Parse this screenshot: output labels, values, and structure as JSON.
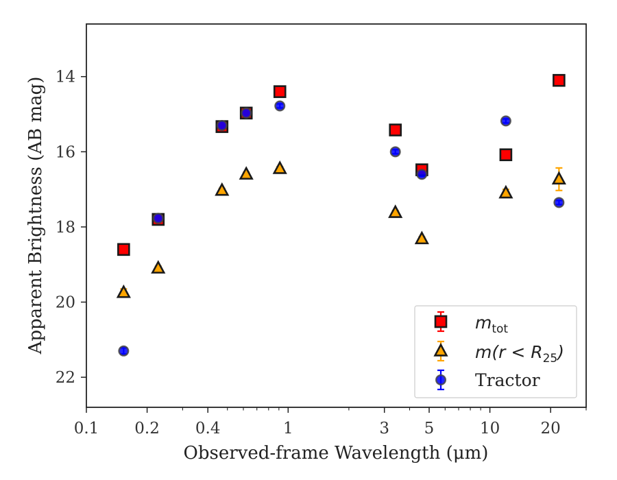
{
  "chart_data": {
    "type": "scatter",
    "xlabel": "Observed-frame Wavelength (μm)",
    "ylabel": "Apparent Brightness (AB mag)",
    "xscale": "log",
    "xlim": [
      0.1,
      30
    ],
    "ylim": [
      22.8,
      12.6
    ],
    "y_inverted": true,
    "x_ticks": [
      {
        "value": 0.1,
        "label": "0.1"
      },
      {
        "value": 0.2,
        "label": "0.2"
      },
      {
        "value": 0.4,
        "label": "0.4"
      },
      {
        "value": 1,
        "label": "1"
      },
      {
        "value": 3,
        "label": "3"
      },
      {
        "value": 5,
        "label": "5"
      },
      {
        "value": 10,
        "label": "10"
      },
      {
        "value": 20,
        "label": "20"
      }
    ],
    "x_minor_ticks": [
      0.3,
      0.5,
      0.6,
      0.7,
      0.8,
      0.9,
      2,
      4,
      6,
      7,
      8,
      9,
      30
    ],
    "y_ticks": [
      {
        "value": 14,
        "label": "14"
      },
      {
        "value": 16,
        "label": "16"
      },
      {
        "value": 18,
        "label": "18"
      },
      {
        "value": 20,
        "label": "20"
      },
      {
        "value": 22,
        "label": "22"
      }
    ],
    "grid": false,
    "legend_position": "bottom-right",
    "series": [
      {
        "name": "m_tot",
        "marker": "square",
        "color": "#ff0000",
        "edgecolor": "#1a1a1a",
        "errorcolor": "#ff0000",
        "points": [
          {
            "x": 0.153,
            "y": 18.6,
            "err": 0.05
          },
          {
            "x": 0.227,
            "y": 17.8,
            "err": 0.05
          },
          {
            "x": 0.47,
            "y": 15.33,
            "err": 0.03
          },
          {
            "x": 0.62,
            "y": 14.97,
            "err": 0.03
          },
          {
            "x": 0.91,
            "y": 14.4,
            "err": 0.03
          },
          {
            "x": 3.4,
            "y": 15.42,
            "err": 0.03
          },
          {
            "x": 4.6,
            "y": 16.48,
            "err": 0.05
          },
          {
            "x": 12.0,
            "y": 16.08,
            "err": 0.05
          },
          {
            "x": 22.0,
            "y": 14.1,
            "err": 0.05
          }
        ]
      },
      {
        "name": "m(r < R25)",
        "marker": "triangle",
        "color": "#ffa500",
        "edgecolor": "#1a1a1a",
        "errorcolor": "#ffa500",
        "points": [
          {
            "x": 0.153,
            "y": 19.75,
            "err": 0.1
          },
          {
            "x": 0.227,
            "y": 19.1,
            "err": 0.05
          },
          {
            "x": 0.47,
            "y": 17.03,
            "err": 0.03
          },
          {
            "x": 0.62,
            "y": 16.6,
            "err": 0.03
          },
          {
            "x": 0.91,
            "y": 16.45,
            "err": 0.03
          },
          {
            "x": 3.4,
            "y": 17.62,
            "err": 0.03
          },
          {
            "x": 4.6,
            "y": 18.32,
            "err": 0.05
          },
          {
            "x": 12.0,
            "y": 17.1,
            "err": 0.1
          },
          {
            "x": 22.0,
            "y": 16.73,
            "err": 0.3
          }
        ]
      },
      {
        "name": "Tractor",
        "marker": "circle",
        "color": "#0000ff",
        "edgecolor": "#444444",
        "errorcolor": "#0000ff",
        "points": [
          {
            "x": 0.153,
            "y": 21.3,
            "err": 0.08
          },
          {
            "x": 0.227,
            "y": 17.77,
            "err": 0.08
          },
          {
            "x": 0.47,
            "y": 15.3,
            "err": 0.05
          },
          {
            "x": 0.62,
            "y": 14.97,
            "err": 0.05
          },
          {
            "x": 0.91,
            "y": 14.78,
            "err": 0.05
          },
          {
            "x": 3.4,
            "y": 16.0,
            "err": 0.05
          },
          {
            "x": 4.6,
            "y": 16.6,
            "err": 0.05
          },
          {
            "x": 12.0,
            "y": 15.18,
            "err": 0.05
          },
          {
            "x": 22.0,
            "y": 17.35,
            "err": 0.05
          }
        ]
      }
    ],
    "legend": [
      {
        "base": "m",
        "sub": "tot",
        "rest": ""
      },
      {
        "base": "m",
        "sub": "",
        "rest": "(r < R",
        "sub2": "25",
        "close": ")"
      },
      {
        "base": "Tractor",
        "sub": "",
        "rest": ""
      }
    ]
  }
}
